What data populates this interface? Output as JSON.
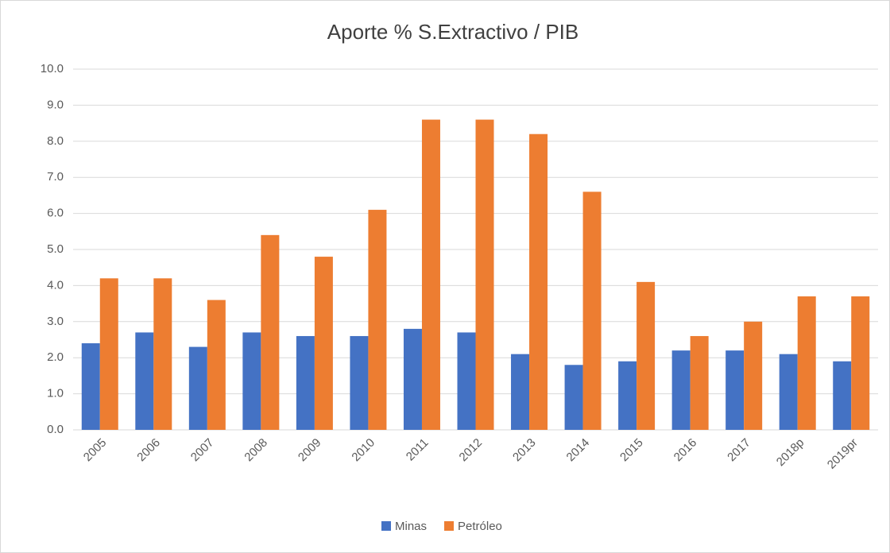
{
  "chart_data": {
    "type": "bar",
    "title": "Aporte % S.Extractivo / PIB",
    "categories": [
      "2005",
      "2006",
      "2007",
      "2008",
      "2009",
      "2010",
      "2011",
      "2012",
      "2013",
      "2014",
      "2015",
      "2016",
      "2017",
      "2018p",
      "2019pr"
    ],
    "series": [
      {
        "name": "Minas",
        "color": "#4472c4",
        "values": [
          2.4,
          2.7,
          2.3,
          2.7,
          2.6,
          2.6,
          2.8,
          2.7,
          2.1,
          1.8,
          1.9,
          2.2,
          2.2,
          2.1,
          1.9
        ]
      },
      {
        "name": "Petróleo",
        "color": "#ed7d31",
        "values": [
          4.2,
          4.2,
          3.6,
          5.4,
          4.8,
          6.1,
          8.6,
          8.6,
          8.2,
          6.6,
          4.1,
          2.6,
          3.0,
          3.7,
          3.7
        ]
      }
    ],
    "ylim": [
      0,
      10
    ],
    "yticks": [
      {
        "value": 0,
        "label": "0.0"
      },
      {
        "value": 1,
        "label": "1.0"
      },
      {
        "value": 2,
        "label": "2.0"
      },
      {
        "value": 3,
        "label": "3.0"
      },
      {
        "value": 4,
        "label": "4.0"
      },
      {
        "value": 5,
        "label": "5.0"
      },
      {
        "value": 6,
        "label": "6.0"
      },
      {
        "value": 7,
        "label": "7.0"
      },
      {
        "value": 8,
        "label": "8.0"
      },
      {
        "value": 9,
        "label": "9.0"
      },
      {
        "value": 10,
        "label": "10.0"
      }
    ],
    "grid": true,
    "legend": "bottom"
  }
}
